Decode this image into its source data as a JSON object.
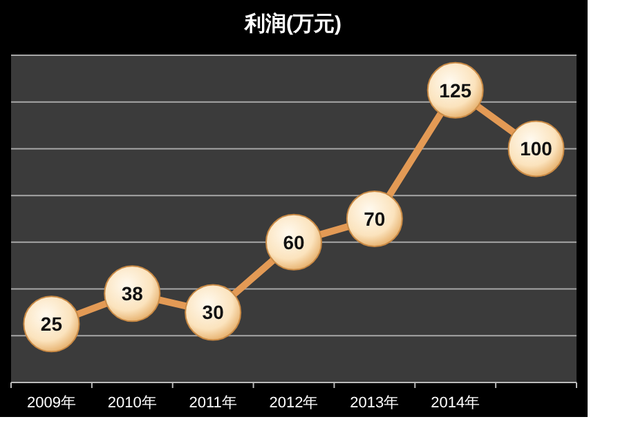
{
  "chart_data": {
    "type": "line",
    "title": "利润(万元)",
    "categories": [
      "2009年",
      "2010年",
      "2011年",
      "2012年",
      "2013年",
      "2014年",
      null
    ],
    "values": [
      25,
      38,
      30,
      60,
      70,
      125,
      100
    ],
    "color": "#e39a55",
    "marker": "circle",
    "data_labels": true,
    "grid": "y",
    "ylim": [
      0,
      140
    ],
    "yticks": [
      {
        "value": 0,
        "label": null
      },
      {
        "value": 20,
        "label": null
      },
      {
        "value": 40,
        "label": null
      },
      {
        "value": 60,
        "label": null
      },
      {
        "value": 80,
        "label": null
      },
      {
        "value": 100,
        "label": null
      },
      {
        "value": 120,
        "label": null
      },
      {
        "value": 140,
        "label": null
      }
    ]
  }
}
